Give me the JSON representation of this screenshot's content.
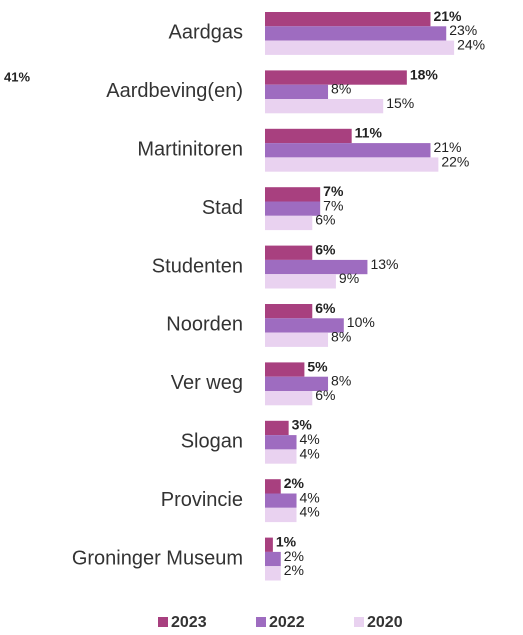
{
  "chart_data": {
    "type": "bar",
    "orientation": "horizontal",
    "annotation": "41%",
    "categories": [
      "Aardgas",
      "Aardbeving(en)",
      "Martinitoren",
      "Stad",
      "Studenten",
      "Noorden",
      "Ver weg",
      "Slogan",
      "Provincie",
      "Groninger Museum"
    ],
    "series": [
      {
        "name": "2023",
        "color": "#a8407f",
        "values": [
          21,
          18,
          11,
          7,
          6,
          6,
          5,
          3,
          2,
          1
        ],
        "value_labels": [
          "21%",
          "18%",
          "11%",
          "7%",
          "6%",
          "6%",
          "5%",
          "3%",
          "2%",
          "1%"
        ]
      },
      {
        "name": "2022",
        "color": "#9e6cc0",
        "values": [
          23,
          8,
          21,
          7,
          13,
          10,
          8,
          4,
          4,
          2
        ],
        "value_labels": [
          "23%",
          "8%",
          "21%",
          "7%",
          "13%",
          "10%",
          "8%",
          "4%",
          "4%",
          "2%"
        ]
      },
      {
        "name": "2020",
        "color": "#e9d2f0",
        "values": [
          24,
          15,
          22,
          6,
          9,
          8,
          6,
          4,
          4,
          2
        ],
        "value_labels": [
          "24%",
          "15%",
          "22%",
          "6%",
          "9%",
          "8%",
          "6%",
          "4%",
          "4%",
          "2%"
        ]
      }
    ],
    "legend": "bottom"
  }
}
